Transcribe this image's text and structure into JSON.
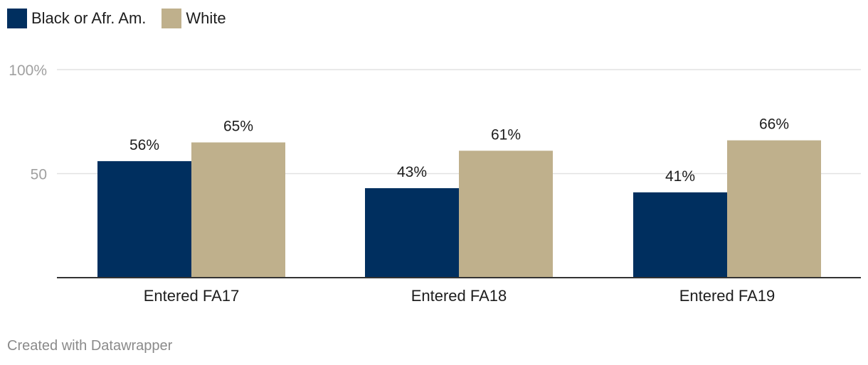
{
  "chart_data": {
    "type": "bar",
    "categories": [
      "Entered FA17",
      "Entered FA18",
      "Entered FA19"
    ],
    "series": [
      {
        "name": "Black or Afr. Am.",
        "values": [
          56,
          43,
          41
        ],
        "labels": [
          "56%",
          "43%",
          "41%"
        ],
        "color": "#002f5f"
      },
      {
        "name": "White",
        "values": [
          65,
          61,
          66
        ],
        "labels": [
          "65%",
          "61%",
          "66%"
        ],
        "color": "#bfb08c"
      }
    ],
    "ylim": [
      0,
      100
    ],
    "yticks": [
      {
        "value": 100,
        "label": "100%"
      },
      {
        "value": 50,
        "label": "50"
      }
    ],
    "grid": true,
    "legend": "top-left"
  },
  "footer": {
    "credit": "Created with Datawrapper"
  }
}
